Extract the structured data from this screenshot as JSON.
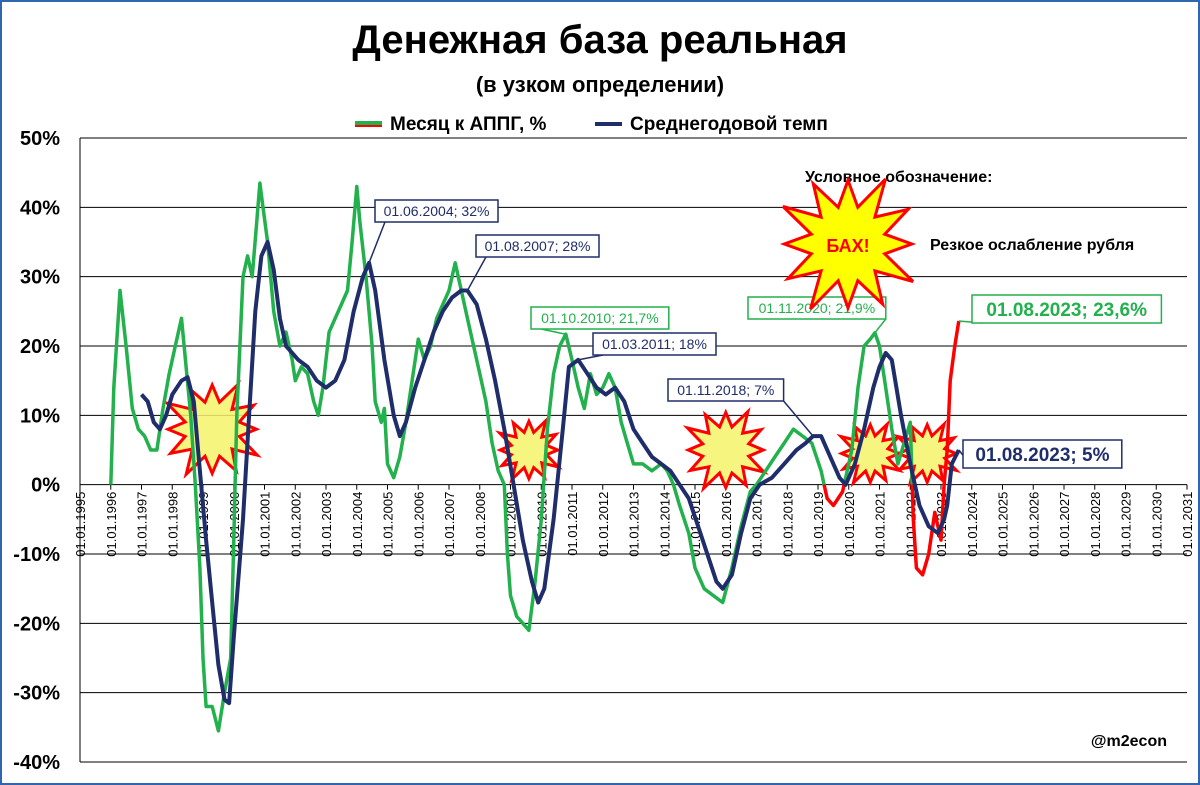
{
  "chart_data": {
    "type": "line",
    "title": "Денежная база реальная",
    "subtitle": "(в узком определении)",
    "ylim": [
      -40,
      50
    ],
    "y_ticks": [
      "50%",
      "40%",
      "30%",
      "20%",
      "10%",
      "0%",
      "-10%",
      "-20%",
      "-30%",
      "-40%"
    ],
    "x_range": [
      1995,
      2031
    ],
    "x_ticks": [
      "01.01.1995",
      "01.01.1996",
      "01.01.1997",
      "01.01.1998",
      "01.01.1999",
      "01.01.2000",
      "01.01.2001",
      "01.01.2002",
      "01.01.2003",
      "01.01.2004",
      "01.01.2005",
      "01.01.2006",
      "01.01.2007",
      "01.01.2008",
      "01.01.2009",
      "01.01.2010",
      "01.01.2011",
      "01.01.2012",
      "01.01.2013",
      "01.01.2014",
      "01.01.2015",
      "01.01.2016",
      "01.01.2017",
      "01.01.2018",
      "01.01.2019",
      "01.01.2020",
      "01.01.2021",
      "01.01.2022",
      "01.01.2023",
      "01.01.2024",
      "01.01.2025",
      "01.01.2026",
      "01.01.2027",
      "01.01.2028",
      "01.01.2029",
      "01.01.2030",
      "01.01.2031"
    ],
    "grid": true,
    "legend": "top-center",
    "series": [
      {
        "name": "Месяц к АППГ, %",
        "color": "#22b14c",
        "negative_color": "#ff0000",
        "points": [
          [
            1996.0,
            0
          ],
          [
            1996.1,
            14
          ],
          [
            1996.3,
            28
          ],
          [
            1996.5,
            20
          ],
          [
            1996.7,
            11
          ],
          [
            1996.9,
            8
          ],
          [
            1997.1,
            7
          ],
          [
            1997.3,
            5
          ],
          [
            1997.5,
            5
          ],
          [
            1997.7,
            11
          ],
          [
            1997.9,
            16
          ],
          [
            1998.1,
            20
          ],
          [
            1998.3,
            24
          ],
          [
            1998.45,
            17
          ],
          [
            1998.6,
            10
          ],
          [
            1998.75,
            0
          ],
          [
            1998.9,
            -12
          ],
          [
            1999.0,
            -25
          ],
          [
            1999.1,
            -32
          ],
          [
            1999.3,
            -32
          ],
          [
            1999.5,
            -35.5
          ],
          [
            1999.7,
            -30
          ],
          [
            1999.9,
            -25
          ],
          [
            2000.0,
            -8
          ],
          [
            2000.1,
            10
          ],
          [
            2000.3,
            30
          ],
          [
            2000.45,
            33
          ],
          [
            2000.6,
            30
          ],
          [
            2000.75,
            38
          ],
          [
            2000.85,
            43.5
          ],
          [
            2000.95,
            40
          ],
          [
            2001.1,
            35
          ],
          [
            2001.3,
            25
          ],
          [
            2001.5,
            20
          ],
          [
            2001.7,
            22
          ],
          [
            2001.9,
            18
          ],
          [
            2002.0,
            15
          ],
          [
            2002.2,
            17
          ],
          [
            2002.4,
            16
          ],
          [
            2002.6,
            12
          ],
          [
            2002.75,
            10
          ],
          [
            2002.9,
            14
          ],
          [
            2003.1,
            22
          ],
          [
            2003.3,
            24
          ],
          [
            2003.5,
            26
          ],
          [
            2003.7,
            28
          ],
          [
            2003.85,
            35
          ],
          [
            2004.0,
            43
          ],
          [
            2004.1,
            38
          ],
          [
            2004.3,
            30
          ],
          [
            2004.5,
            20
          ],
          [
            2004.6,
            12
          ],
          [
            2004.8,
            9
          ],
          [
            2004.9,
            11
          ],
          [
            2005.0,
            3
          ],
          [
            2005.2,
            1
          ],
          [
            2005.4,
            4
          ],
          [
            2005.6,
            9
          ],
          [
            2005.8,
            15
          ],
          [
            2006.0,
            21
          ],
          [
            2006.2,
            18
          ],
          [
            2006.4,
            20
          ],
          [
            2006.6,
            24
          ],
          [
            2006.8,
            26
          ],
          [
            2007.0,
            28
          ],
          [
            2007.2,
            32
          ],
          [
            2007.4,
            28
          ],
          [
            2007.6,
            24
          ],
          [
            2007.8,
            20
          ],
          [
            2008.0,
            16
          ],
          [
            2008.2,
            12
          ],
          [
            2008.4,
            6
          ],
          [
            2008.6,
            2
          ],
          [
            2008.8,
            0
          ],
          [
            2008.9,
            -10
          ],
          [
            2009.0,
            -16
          ],
          [
            2009.2,
            -19
          ],
          [
            2009.4,
            -20
          ],
          [
            2009.6,
            -21
          ],
          [
            2009.8,
            -14
          ],
          [
            2010.0,
            -5
          ],
          [
            2010.2,
            8
          ],
          [
            2010.4,
            16
          ],
          [
            2010.6,
            20
          ],
          [
            2010.8,
            21.7
          ],
          [
            2011.0,
            18
          ],
          [
            2011.2,
            14
          ],
          [
            2011.4,
            11
          ],
          [
            2011.6,
            16
          ],
          [
            2011.8,
            13
          ],
          [
            2012.0,
            14
          ],
          [
            2012.2,
            16
          ],
          [
            2012.4,
            14
          ],
          [
            2012.6,
            9
          ],
          [
            2012.8,
            6
          ],
          [
            2013.0,
            3
          ],
          [
            2013.3,
            3
          ],
          [
            2013.6,
            2
          ],
          [
            2013.9,
            3
          ],
          [
            2014.1,
            2
          ],
          [
            2014.3,
            0
          ],
          [
            2014.5,
            -3
          ],
          [
            2014.8,
            -7
          ],
          [
            2015.0,
            -12
          ],
          [
            2015.3,
            -15
          ],
          [
            2015.6,
            -16
          ],
          [
            2015.9,
            -17
          ],
          [
            2016.2,
            -12
          ],
          [
            2016.5,
            -6
          ],
          [
            2016.8,
            -1
          ],
          [
            2017.0,
            0
          ],
          [
            2017.3,
            2
          ],
          [
            2017.6,
            4
          ],
          [
            2017.9,
            6
          ],
          [
            2018.2,
            8
          ],
          [
            2018.5,
            7
          ],
          [
            2018.8,
            6
          ],
          [
            2019.1,
            2
          ],
          [
            2019.3,
            -2
          ],
          [
            2019.5,
            -3
          ],
          [
            2019.8,
            -1
          ],
          [
            2020.1,
            5
          ],
          [
            2020.3,
            14
          ],
          [
            2020.5,
            20
          ],
          [
            2020.7,
            21
          ],
          [
            2020.85,
            21.9
          ],
          [
            2021.0,
            20
          ],
          [
            2021.2,
            14
          ],
          [
            2021.4,
            8
          ],
          [
            2021.6,
            3
          ],
          [
            2021.8,
            6
          ],
          [
            2022.0,
            9
          ],
          [
            2022.1,
            -5
          ],
          [
            2022.2,
            -12
          ],
          [
            2022.4,
            -13
          ],
          [
            2022.6,
            -10
          ],
          [
            2022.8,
            -4
          ],
          [
            2022.9,
            -6
          ],
          [
            2023.0,
            -8
          ],
          [
            2023.1,
            0
          ],
          [
            2023.2,
            5
          ],
          [
            2023.3,
            15
          ],
          [
            2023.45,
            20
          ],
          [
            2023.58,
            23.6
          ]
        ]
      },
      {
        "name": "Среднегодовой темп",
        "color": "#1f2d6b",
        "points": [
          [
            1997.0,
            13
          ],
          [
            1997.2,
            12
          ],
          [
            1997.4,
            9
          ],
          [
            1997.6,
            8
          ],
          [
            1997.8,
            10
          ],
          [
            1998.0,
            13
          ],
          [
            1998.3,
            15
          ],
          [
            1998.5,
            15.5
          ],
          [
            1998.7,
            12
          ],
          [
            1998.9,
            2
          ],
          [
            1999.1,
            -8
          ],
          [
            1999.3,
            -17
          ],
          [
            1999.5,
            -26
          ],
          [
            1999.7,
            -31
          ],
          [
            1999.85,
            -31.5
          ],
          [
            2000.0,
            -22
          ],
          [
            2000.3,
            -5
          ],
          [
            2000.5,
            10
          ],
          [
            2000.7,
            25
          ],
          [
            2000.9,
            33
          ],
          [
            2001.1,
            35
          ],
          [
            2001.3,
            31
          ],
          [
            2001.5,
            24
          ],
          [
            2001.7,
            20
          ],
          [
            2001.9,
            19
          ],
          [
            2002.1,
            18
          ],
          [
            2002.4,
            17
          ],
          [
            2002.7,
            15
          ],
          [
            2003.0,
            14
          ],
          [
            2003.3,
            15
          ],
          [
            2003.6,
            18
          ],
          [
            2003.9,
            25
          ],
          [
            2004.2,
            30
          ],
          [
            2004.4,
            32
          ],
          [
            2004.6,
            28
          ],
          [
            2004.9,
            18
          ],
          [
            2005.2,
            10
          ],
          [
            2005.4,
            7
          ],
          [
            2005.6,
            9
          ],
          [
            2005.9,
            14
          ],
          [
            2006.2,
            18
          ],
          [
            2006.5,
            22
          ],
          [
            2006.8,
            25
          ],
          [
            2007.1,
            27
          ],
          [
            2007.4,
            28
          ],
          [
            2007.6,
            28
          ],
          [
            2007.9,
            26
          ],
          [
            2008.2,
            21
          ],
          [
            2008.5,
            15
          ],
          [
            2008.8,
            8
          ],
          [
            2009.1,
            0
          ],
          [
            2009.4,
            -8
          ],
          [
            2009.7,
            -14
          ],
          [
            2009.9,
            -17
          ],
          [
            2010.1,
            -15
          ],
          [
            2010.4,
            -5
          ],
          [
            2010.7,
            8
          ],
          [
            2010.9,
            17
          ],
          [
            2011.2,
            18
          ],
          [
            2011.5,
            16
          ],
          [
            2011.8,
            14
          ],
          [
            2012.1,
            13
          ],
          [
            2012.4,
            14
          ],
          [
            2012.7,
            12
          ],
          [
            2013.0,
            8
          ],
          [
            2013.3,
            6
          ],
          [
            2013.6,
            4
          ],
          [
            2013.9,
            3
          ],
          [
            2014.2,
            2
          ],
          [
            2014.5,
            0
          ],
          [
            2014.8,
            -2
          ],
          [
            2015.1,
            -6
          ],
          [
            2015.4,
            -10
          ],
          [
            2015.7,
            -14
          ],
          [
            2015.9,
            -15
          ],
          [
            2016.2,
            -13
          ],
          [
            2016.5,
            -7
          ],
          [
            2016.8,
            -2
          ],
          [
            2017.1,
            0
          ],
          [
            2017.5,
            1
          ],
          [
            2017.9,
            3
          ],
          [
            2018.3,
            5
          ],
          [
            2018.6,
            6
          ],
          [
            2018.84,
            7
          ],
          [
            2019.1,
            7
          ],
          [
            2019.4,
            4
          ],
          [
            2019.7,
            1
          ],
          [
            2019.9,
            0
          ],
          [
            2020.2,
            3
          ],
          [
            2020.5,
            8
          ],
          [
            2020.8,
            14
          ],
          [
            2021.0,
            17
          ],
          [
            2021.2,
            19
          ],
          [
            2021.4,
            18
          ],
          [
            2021.7,
            10
          ],
          [
            2022.0,
            3
          ],
          [
            2022.3,
            -3
          ],
          [
            2022.6,
            -6
          ],
          [
            2022.9,
            -7
          ],
          [
            2023.1,
            -5
          ],
          [
            2023.2,
            -3
          ],
          [
            2023.35,
            3
          ],
          [
            2023.58,
            5
          ]
        ]
      }
    ],
    "annotations": [
      {
        "text": "01.06.2004; 32%",
        "color": "#1f2d6b",
        "at": [
          2004.4,
          32
        ]
      },
      {
        "text": "01.08.2007; 28%",
        "color": "#1f2d6b",
        "at": [
          2007.6,
          28
        ]
      },
      {
        "text": "01.10.2010; 21,7%",
        "color": "#22b14c",
        "at": [
          2010.8,
          21.7
        ]
      },
      {
        "text": "01.03.2011; 18%",
        "color": "#1f2d6b",
        "at": [
          2011.2,
          18
        ]
      },
      {
        "text": "01.11.2018; 7%",
        "color": "#1f2d6b",
        "at": [
          2018.84,
          7
        ]
      },
      {
        "text": "01.11.2020; 21,9%",
        "color": "#22b14c",
        "at": [
          2020.85,
          21.9
        ]
      },
      {
        "text": "01.08.2023; 23,6%",
        "color": "#22b14c",
        "at": [
          2023.58,
          23.6
        ],
        "big": true
      },
      {
        "text": "01.08.2023; 5%",
        "color": "#1f2d6b",
        "at": [
          2023.58,
          5
        ],
        "big": true
      }
    ],
    "shocks": [
      [
        1999.3,
        8
      ],
      [
        2009.6,
        5
      ],
      [
        2016.0,
        5
      ],
      [
        2020.7,
        4.5
      ],
      [
        2022.55,
        4.5
      ]
    ],
    "legend_note": {
      "title": "Условное обозначение:",
      "badge": "БАХ!",
      "label": "Резкое ослабление рубля"
    },
    "watermark": "@m2econ"
  }
}
